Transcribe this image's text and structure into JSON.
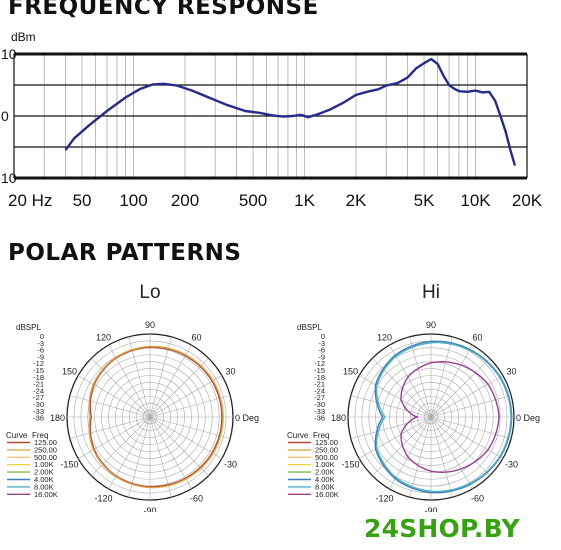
{
  "frequency_title": "FREQUENCY RESPONSE",
  "polar_title": "POLAR PATTERNS",
  "watermark": "24SHOP.BY",
  "chart_data": [
    {
      "type": "line",
      "title": "FREQUENCY RESPONSE",
      "ylabel": "dBm",
      "xscale": "log",
      "xlim": [
        20,
        20000
      ],
      "ylim": [
        -10,
        10
      ],
      "grid": true,
      "y_ticks": [
        "10",
        "0",
        "10"
      ],
      "x_ticks": [
        {
          "f": 20,
          "label": "20 Hz"
        },
        {
          "f": 50,
          "label": "50"
        },
        {
          "f": 100,
          "label": "100"
        },
        {
          "f": 200,
          "label": "200"
        },
        {
          "f": 500,
          "label": "500"
        },
        {
          "f": 1000,
          "label": "1K"
        },
        {
          "f": 2000,
          "label": "2K"
        },
        {
          "f": 5000,
          "label": "5K"
        },
        {
          "f": 10000,
          "label": "10K"
        },
        {
          "f": 20000,
          "label": "20K"
        }
      ],
      "color": "#262a8c",
      "x": [
        40,
        45,
        55,
        70,
        90,
        110,
        130,
        150,
        180,
        220,
        280,
        350,
        450,
        550,
        650,
        750,
        850,
        950,
        1050,
        1200,
        1400,
        1700,
        2000,
        2400,
        2700,
        3000,
        3500,
        4000,
        4500,
        5000,
        5500,
        6000,
        6500,
        7000,
        7500,
        8000,
        9000,
        10000,
        11000,
        12000,
        13000,
        14000,
        15000,
        16000,
        17000
      ],
      "y": [
        -5.5,
        -3.6,
        -1.5,
        0.8,
        3.0,
        4.4,
        5.1,
        5.2,
        4.9,
        4.1,
        2.9,
        1.8,
        0.8,
        0.5,
        0.1,
        -0.1,
        0.0,
        0.2,
        -0.2,
        0.3,
        1.0,
        2.2,
        3.4,
        4.0,
        4.3,
        4.9,
        5.3,
        6.2,
        7.7,
        8.5,
        9.2,
        8.4,
        6.5,
        5.0,
        4.4,
        4.0,
        3.9,
        4.1,
        3.8,
        3.9,
        2.5,
        0.0,
        -2.5,
        -5.5,
        -8.0
      ]
    },
    {
      "type": "polar",
      "title": "Lo",
      "rlabel": "dBSPL",
      "r_ticks": [
        "0",
        "-3",
        "-6",
        "-9",
        "-12",
        "-15",
        "-18",
        "-21",
        "-24",
        "-27",
        "-30",
        "-33",
        "-36"
      ],
      "angle_ticks": [
        "0 Deg",
        "30",
        "60",
        "90",
        "120",
        "150",
        "180",
        "-150",
        "-120",
        "-90",
        "-60",
        "-30"
      ],
      "legend_header": [
        "Curve",
        "Freq"
      ],
      "series": [
        {
          "name": "125.00",
          "color": "#b04a2a",
          "visible": true,
          "levels": [
            -4.8,
            -4.9,
            -5.3,
            -5.8,
            -6.5,
            -8.0,
            -10.5,
            -8.0,
            -6.5,
            -5.8,
            -5.3,
            -4.9
          ]
        },
        {
          "name": "250.00",
          "color": "#e2a24c",
          "visible": true,
          "levels": [
            -4.3,
            -4.4,
            -4.9,
            -5.4,
            -6.2,
            -7.6,
            -10.0,
            -7.6,
            -6.2,
            -5.4,
            -4.9,
            -4.4
          ]
        },
        {
          "name": "500.00",
          "color": "#f0c27a",
          "visible": false,
          "levels": []
        },
        {
          "name": "1.00K",
          "color": "#e8d64a",
          "visible": false,
          "levels": []
        },
        {
          "name": "2.00K",
          "color": "#7ebf4a",
          "visible": false,
          "levels": []
        },
        {
          "name": "4.00K",
          "color": "#3c7fb8",
          "visible": false,
          "levels": []
        },
        {
          "name": "8.00K",
          "color": "#50b0c8",
          "visible": false,
          "levels": []
        },
        {
          "name": "16.00K",
          "color": "#9a3e8e",
          "visible": false,
          "levels": []
        }
      ]
    },
    {
      "type": "polar",
      "title": "Hi",
      "rlabel": "dBSPL",
      "r_ticks": [
        "0",
        "-3",
        "-6",
        "-9",
        "-12",
        "-15",
        "-18",
        "-21",
        "-24",
        "-27",
        "-30",
        "-33",
        "-36"
      ],
      "angle_ticks": [
        "0 Deg",
        "30",
        "60",
        "90",
        "120",
        "150",
        "180",
        "-150",
        "-120",
        "-90",
        "-60",
        "-30"
      ],
      "legend_header": [
        "Curve",
        "Freq"
      ],
      "series": [
        {
          "name": "125.00",
          "color": "#b04a2a",
          "visible": false,
          "levels": []
        },
        {
          "name": "250.00",
          "color": "#e2a24c",
          "visible": false,
          "levels": []
        },
        {
          "name": "500.00",
          "color": "#f0c27a",
          "visible": false,
          "levels": []
        },
        {
          "name": "1.00K",
          "color": "#e8d64a",
          "visible": false,
          "levels": []
        },
        {
          "name": "2.00K",
          "color": "#7ebf4a",
          "visible": false,
          "levels": []
        },
        {
          "name": "4.00K",
          "color": "#3c7fb8",
          "visible": true,
          "levels": [
            -1.0,
            -1.3,
            -2.2,
            -3.2,
            -5.0,
            -8.2,
            -15.0,
            -8.2,
            -5.0,
            -3.2,
            -2.2,
            -1.3
          ]
        },
        {
          "name": "8.00K",
          "color": "#50b0c8",
          "visible": true,
          "levels": [
            -1.3,
            -1.6,
            -2.6,
            -3.8,
            -5.6,
            -8.8,
            -16.0,
            -8.8,
            -5.6,
            -3.8,
            -2.6,
            -1.6
          ]
        },
        {
          "name": "16.00K",
          "color": "#9a3e8e",
          "visible": true,
          "levels": [
            -6.5,
            -7.5,
            -10.0,
            -12.5,
            -16.0,
            -21.0,
            -30.0,
            -21.0,
            -16.0,
            -12.5,
            -10.0,
            -7.5
          ]
        }
      ]
    }
  ]
}
